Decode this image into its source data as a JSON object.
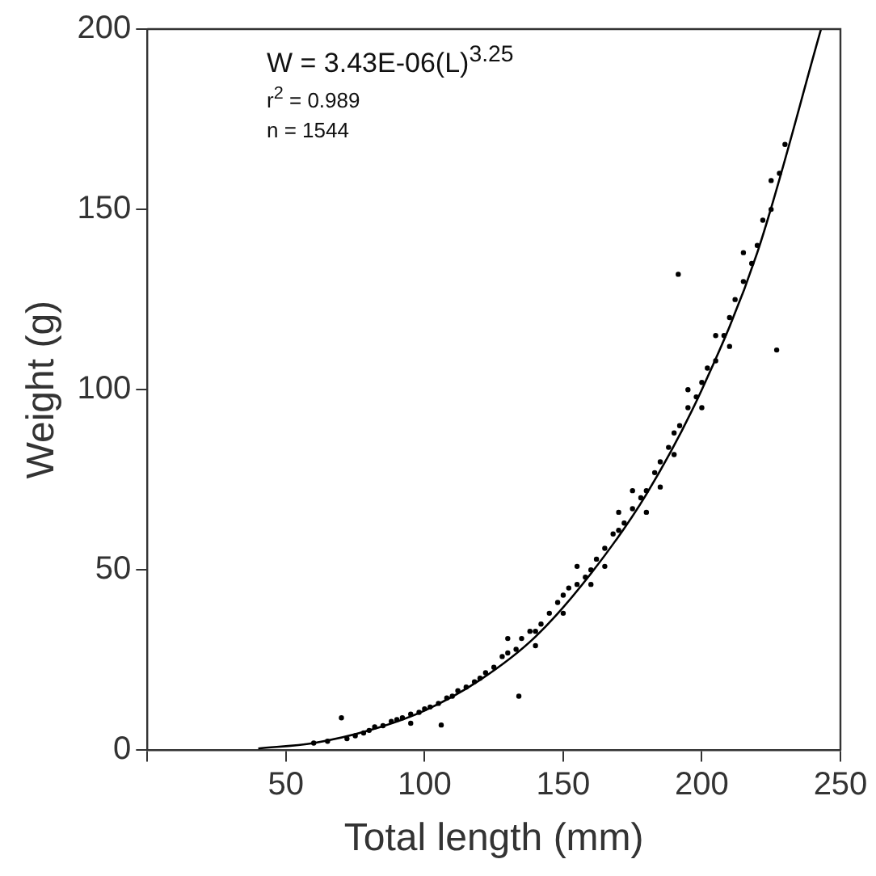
{
  "chart_data": {
    "type": "scatter",
    "xlabel": "Total length (mm)",
    "ylabel": "Weight (g)",
    "annotations": [
      "W = 3.43E-06(L)$^{3.25}$",
      "r$^{2}$ = 0.989",
      "n = 1544"
    ],
    "xlim": [
      0,
      250
    ],
    "xticks": [
      {
        "value": 0,
        "label": null
      },
      50,
      100,
      150,
      200,
      250
    ],
    "ylim": [
      0,
      200
    ],
    "yticks": [
      0,
      50,
      100,
      150,
      200
    ],
    "grid": false,
    "legend": false,
    "marker": "circle",
    "series": [
      {
        "type": "scatter",
        "color": "#000000",
        "x": [
          60,
          65,
          70,
          72,
          75,
          78,
          80,
          82,
          85,
          88,
          90,
          92,
          95,
          95,
          98,
          100,
          102,
          105,
          106,
          108,
          110,
          112,
          115,
          118,
          120,
          122,
          125,
          128,
          130,
          130,
          133,
          135,
          138,
          140,
          140,
          142,
          145,
          148,
          150,
          150,
          152,
          155,
          155,
          158,
          160,
          160,
          162,
          165,
          165,
          168,
          170,
          170,
          172,
          175,
          175,
          178,
          180,
          180,
          183,
          185,
          185,
          188,
          190,
          190,
          191.5,
          192,
          195,
          195,
          198,
          200,
          200,
          202,
          205,
          205,
          208,
          210,
          210,
          212,
          215,
          215,
          218,
          220,
          222,
          225,
          225,
          228,
          230,
          227,
          134
        ],
        "values": [
          2,
          2.5,
          9,
          3.2,
          4,
          4.8,
          5.5,
          6.5,
          6.8,
          8,
          8.5,
          9,
          10,
          7.5,
          10.5,
          11.5,
          12,
          13,
          7,
          14.5,
          15,
          16.5,
          17.5,
          19,
          20,
          21.5,
          23,
          26,
          27,
          31,
          28,
          31,
          33,
          33,
          29,
          35,
          38,
          41,
          43,
          38,
          45,
          46,
          51,
          48,
          50,
          46,
          53,
          56,
          51,
          60,
          61,
          66,
          63,
          67,
          72,
          70,
          72,
          66,
          77,
          80,
          73,
          84,
          88,
          82,
          132,
          90,
          95,
          100,
          98,
          102,
          95,
          106,
          108,
          115,
          115,
          120,
          112,
          125,
          130,
          138,
          135,
          140,
          147,
          150,
          158,
          160,
          168,
          111,
          15
        ]
      },
      {
        "type": "line",
        "color": "#000000",
        "marker": "none",
        "x": [
          40,
          60,
          80,
          100,
          120,
          140,
          160,
          180,
          200,
          220,
          243
        ],
        "values": [
          0.5,
          2,
          5.5,
          11,
          19.5,
          31.5,
          49,
          71,
          100,
          138,
          200
        ]
      }
    ]
  }
}
